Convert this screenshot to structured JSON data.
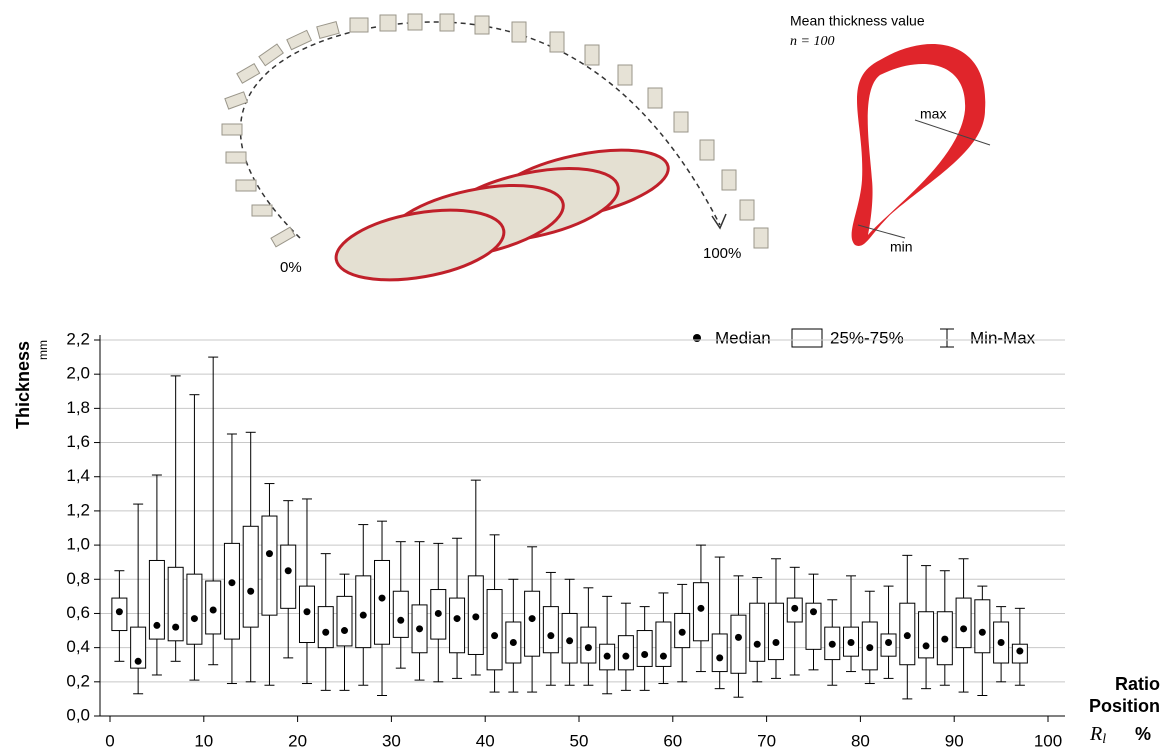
{
  "illustration": {
    "start_label": "0%",
    "end_label": "100%",
    "inset_title": "Mean thickness value",
    "inset_n": "n = 100",
    "max_label": "max",
    "min_label": "min"
  },
  "chart_data": {
    "type": "box",
    "y_label": "Thickness",
    "y_unit": "mm",
    "x_label_line1": "Ratio",
    "x_label_line2": "Position",
    "x_symbol": "R",
    "x_symbol_sub": "l",
    "x_unit": "%",
    "legend": {
      "median": "Median",
      "box": "25%-75%",
      "whisker": "Min-Max"
    },
    "x": [
      1,
      3,
      5,
      7,
      9,
      11,
      13,
      15,
      17,
      19,
      21,
      23,
      25,
      27,
      29,
      31,
      33,
      35,
      37,
      39,
      41,
      43,
      45,
      47,
      49,
      51,
      53,
      55,
      57,
      59,
      61,
      63,
      65,
      67,
      69,
      71,
      73,
      75,
      77,
      79,
      81,
      83,
      85,
      87,
      89,
      91,
      93,
      95,
      97
    ],
    "min": [
      0.32,
      0.13,
      0.24,
      0.32,
      0.21,
      0.3,
      0.19,
      0.2,
      0.18,
      0.34,
      0.19,
      0.15,
      0.15,
      0.18,
      0.12,
      0.28,
      0.21,
      0.2,
      0.22,
      0.24,
      0.14,
      0.14,
      0.14,
      0.18,
      0.18,
      0.18,
      0.13,
      0.15,
      0.15,
      0.19,
      0.2,
      0.26,
      0.16,
      0.11,
      0.2,
      0.22,
      0.24,
      0.27,
      0.18,
      0.26,
      0.19,
      0.22,
      0.1,
      0.16,
      0.18,
      0.14,
      0.12,
      0.2,
      0.18
    ],
    "q1": [
      0.5,
      0.28,
      0.45,
      0.44,
      0.42,
      0.48,
      0.45,
      0.52,
      0.59,
      0.63,
      0.43,
      0.4,
      0.41,
      0.4,
      0.42,
      0.46,
      0.37,
      0.45,
      0.37,
      0.36,
      0.27,
      0.31,
      0.35,
      0.37,
      0.31,
      0.31,
      0.27,
      0.27,
      0.29,
      0.29,
      0.4,
      0.44,
      0.26,
      0.25,
      0.32,
      0.33,
      0.55,
      0.39,
      0.33,
      0.35,
      0.27,
      0.35,
      0.3,
      0.34,
      0.3,
      0.4,
      0.37,
      0.31,
      0.31
    ],
    "median": [
      0.61,
      0.32,
      0.53,
      0.52,
      0.57,
      0.62,
      0.78,
      0.73,
      0.95,
      0.85,
      0.61,
      0.49,
      0.5,
      0.59,
      0.69,
      0.56,
      0.51,
      0.6,
      0.57,
      0.58,
      0.47,
      0.43,
      0.57,
      0.47,
      0.44,
      0.4,
      0.35,
      0.35,
      0.36,
      0.35,
      0.49,
      0.63,
      0.34,
      0.46,
      0.42,
      0.43,
      0.63,
      0.61,
      0.42,
      0.43,
      0.4,
      0.43,
      0.47,
      0.41,
      0.45,
      0.51,
      0.49,
      0.43,
      0.38
    ],
    "q3": [
      0.69,
      0.52,
      0.91,
      0.87,
      0.83,
      0.79,
      1.01,
      1.11,
      1.17,
      1.0,
      0.76,
      0.64,
      0.7,
      0.82,
      0.91,
      0.73,
      0.65,
      0.74,
      0.69,
      0.82,
      0.74,
      0.55,
      0.73,
      0.64,
      0.6,
      0.52,
      0.42,
      0.47,
      0.5,
      0.55,
      0.6,
      0.78,
      0.48,
      0.59,
      0.66,
      0.66,
      0.69,
      0.66,
      0.52,
      0.52,
      0.55,
      0.48,
      0.66,
      0.61,
      0.61,
      0.69,
      0.68,
      0.55,
      0.42
    ],
    "max": [
      0.85,
      1.24,
      1.41,
      1.99,
      1.88,
      2.1,
      1.65,
      1.66,
      1.36,
      1.26,
      1.27,
      0.95,
      0.83,
      1.12,
      1.14,
      1.02,
      1.02,
      1.01,
      1.04,
      1.38,
      1.06,
      0.8,
      0.99,
      0.84,
      0.8,
      0.75,
      0.7,
      0.66,
      0.64,
      0.72,
      0.77,
      1.0,
      0.93,
      0.82,
      0.81,
      0.92,
      0.87,
      0.83,
      0.68,
      0.82,
      0.73,
      0.76,
      0.94,
      0.88,
      0.85,
      0.92,
      0.76,
      0.64,
      0.63
    ],
    "xlim": [
      0,
      100
    ],
    "xticks": [
      0,
      10,
      20,
      30,
      40,
      50,
      60,
      70,
      80,
      90,
      100
    ],
    "ylim": [
      0,
      2.2
    ],
    "yticks": [
      {
        "value": 0,
        "label": "0,0"
      },
      {
        "value": 0.2,
        "label": "0,2"
      },
      {
        "value": 0.4,
        "label": "0,4"
      },
      {
        "value": 0.6,
        "label": "0,6"
      },
      {
        "value": 0.8,
        "label": "0,8"
      },
      {
        "value": 1.0,
        "label": "1,0"
      },
      {
        "value": 1.2,
        "label": "1,2"
      },
      {
        "value": 1.4,
        "label": "1,4"
      },
      {
        "value": 1.6,
        "label": "1,6"
      },
      {
        "value": 1.8,
        "label": "1,8"
      },
      {
        "value": 2.0,
        "label": "2,0"
      },
      {
        "value": 2.2,
        "label": "2,2"
      }
    ],
    "grid": true,
    "box_fill": "#ffffff",
    "line_color": "#000000",
    "median_color": "#000000"
  }
}
